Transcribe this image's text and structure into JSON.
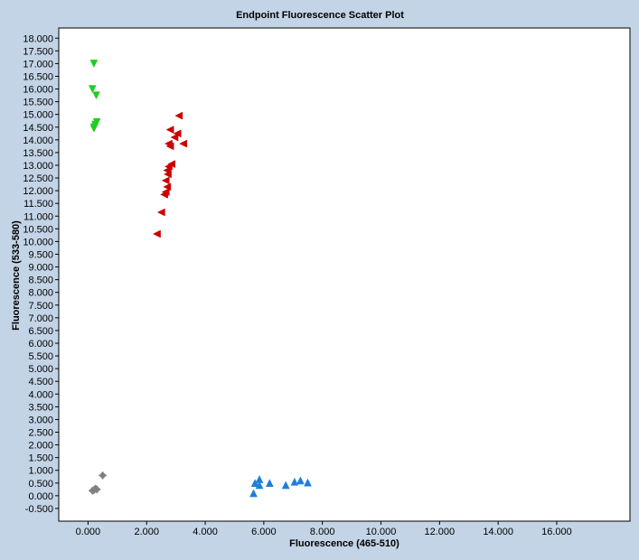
{
  "chart_data": {
    "type": "scatter",
    "title": "Endpoint Fluorescence Scatter Plot",
    "xlabel": "Fluorescence (465-510)",
    "ylabel": "Fluorescence (533-580)",
    "xlim": [
      -1.0,
      18.5
    ],
    "ylim": [
      -1.0,
      18.4
    ],
    "xticks": [
      0,
      2,
      4,
      6,
      8,
      10,
      12,
      14,
      16
    ],
    "xtick_labels": [
      "0.000",
      "2.000",
      "4.000",
      "6.000",
      "8.000",
      "10.000",
      "12.000",
      "14.000",
      "16.000"
    ],
    "yticks": [
      -0.5,
      0,
      0.5,
      1,
      1.5,
      2,
      2.5,
      3,
      3.5,
      4,
      4.5,
      5,
      5.5,
      6,
      6.5,
      7,
      7.5,
      8,
      8.5,
      9,
      9.5,
      10,
      10.5,
      11,
      11.5,
      12,
      12.5,
      13,
      13.5,
      14,
      14.5,
      15,
      15.5,
      16,
      16.5,
      17,
      17.5,
      18
    ],
    "ytick_labels": [
      "-0.500",
      "0.000",
      "0.500",
      "1.000",
      "1.500",
      "2.000",
      "2.500",
      "3.000",
      "3.500",
      "4.000",
      "4.500",
      "5.000",
      "5.500",
      "6.000",
      "6.500",
      "7.000",
      "7.500",
      "8.000",
      "8.500",
      "9.000",
      "9.500",
      "10.000",
      "10.500",
      "11.000",
      "11.500",
      "12.000",
      "12.500",
      "13.000",
      "13.500",
      "14.000",
      "14.500",
      "15.000",
      "15.500",
      "16.000",
      "16.500",
      "17.000",
      "17.500",
      "18.000"
    ],
    "grid": false,
    "series": [
      {
        "marker": "triangle-down",
        "color": "#22cc22",
        "points": [
          [
            0.2,
            17.0
          ],
          [
            0.15,
            16.0
          ],
          [
            0.28,
            15.75
          ],
          [
            0.3,
            14.7
          ],
          [
            0.25,
            14.6
          ],
          [
            0.22,
            14.5
          ],
          [
            0.2,
            14.45
          ]
        ]
      },
      {
        "marker": "triangle-left",
        "color": "#cc0000",
        "points": [
          [
            3.1,
            14.95
          ],
          [
            2.8,
            14.4
          ],
          [
            3.05,
            14.25
          ],
          [
            2.95,
            14.1
          ],
          [
            3.25,
            13.85
          ],
          [
            2.75,
            13.85
          ],
          [
            2.8,
            13.75
          ],
          [
            2.85,
            13.05
          ],
          [
            2.75,
            12.95
          ],
          [
            2.7,
            12.8
          ],
          [
            2.72,
            12.65
          ],
          [
            2.65,
            12.4
          ],
          [
            2.7,
            12.15
          ],
          [
            2.65,
            11.95
          ],
          [
            2.6,
            11.85
          ],
          [
            2.5,
            11.15
          ],
          [
            2.35,
            10.3
          ]
        ]
      },
      {
        "marker": "triangle-up",
        "color": "#1e7fd8",
        "points": [
          [
            5.85,
            0.65
          ],
          [
            5.7,
            0.5
          ],
          [
            5.85,
            0.42
          ],
          [
            6.2,
            0.5
          ],
          [
            5.65,
            0.1
          ],
          [
            6.75,
            0.42
          ],
          [
            7.05,
            0.55
          ],
          [
            7.25,
            0.6
          ],
          [
            7.5,
            0.52
          ]
        ]
      },
      {
        "marker": "star",
        "color": "#808080",
        "points": [
          [
            0.5,
            0.8
          ],
          [
            0.25,
            0.28
          ],
          [
            0.2,
            0.22
          ],
          [
            0.3,
            0.25
          ],
          [
            0.15,
            0.2
          ]
        ]
      }
    ]
  }
}
